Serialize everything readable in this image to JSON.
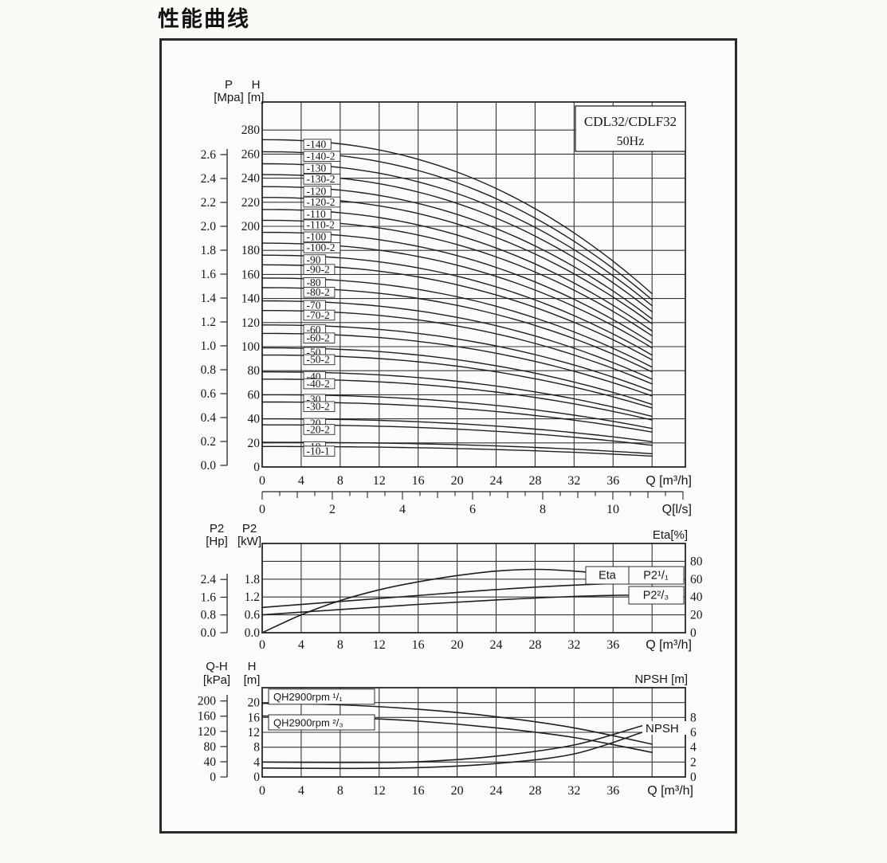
{
  "page": {
    "title": "性能曲线"
  },
  "frame": {
    "model": "CDL32/CDLF32",
    "frequency": "50Hz"
  },
  "chart_data": [
    {
      "id": "head-flow",
      "type": "line",
      "title": "CDL32/CDLF32 50Hz pump Q-H family curves",
      "x_axis": {
        "label": "Q [m³/h]",
        "ticks": [
          0,
          4,
          8,
          12,
          16,
          20,
          24,
          28,
          32,
          36
        ],
        "grid_step": 4,
        "grid_max": 40,
        "xmax": 43.4
      },
      "x_axis_ls": {
        "label": "Q[l/s]",
        "ticks": [
          0,
          2,
          4,
          6,
          8,
          10
        ],
        "minor_step": 0.5,
        "tick_max": 12
      },
      "y_axis_mpa": {
        "name": "P",
        "unit": "[Mpa]",
        "ticks": [
          "2.6",
          "2.4",
          "2.2",
          "2.0",
          "1.8",
          "1.6",
          "1.4",
          "1.2",
          "1.0",
          "0.8",
          "0.6",
          "0.4",
          "0.2",
          "0.0"
        ]
      },
      "y_axis_m": {
        "name": "H",
        "unit": "[m]",
        "ticks": [
          280,
          260,
          240,
          220,
          200,
          180,
          160,
          140,
          120,
          100,
          80,
          60,
          40,
          20,
          0
        ],
        "grid_step": 20,
        "ymax": 303
      },
      "q_max": 40,
      "series": [
        {
          "label": "-140",
          "h_shutoff": 272,
          "h_at_qmax": 144
        },
        {
          "label": "-140-2",
          "h_shutoff": 262,
          "h_at_qmax": 139
        },
        {
          "label": "-130",
          "h_shutoff": 252,
          "h_at_qmax": 134
        },
        {
          "label": "-130-2",
          "h_shutoff": 243,
          "h_at_qmax": 129
        },
        {
          "label": "-120",
          "h_shutoff": 233,
          "h_at_qmax": 123
        },
        {
          "label": "-120-2",
          "h_shutoff": 224,
          "h_at_qmax": 119
        },
        {
          "label": "-110",
          "h_shutoff": 214,
          "h_at_qmax": 113
        },
        {
          "label": "-110-2",
          "h_shutoff": 205,
          "h_at_qmax": 109
        },
        {
          "label": "-100",
          "h_shutoff": 195,
          "h_at_qmax": 103
        },
        {
          "label": "-100-2",
          "h_shutoff": 186,
          "h_at_qmax": 99
        },
        {
          "label": "-90",
          "h_shutoff": 176,
          "h_at_qmax": 93
        },
        {
          "label": "-90-2",
          "h_shutoff": 168,
          "h_at_qmax": 89
        },
        {
          "label": "-80",
          "h_shutoff": 157,
          "h_at_qmax": 83
        },
        {
          "label": "-80-2",
          "h_shutoff": 149,
          "h_at_qmax": 79
        },
        {
          "label": "-70",
          "h_shutoff": 138,
          "h_at_qmax": 73
        },
        {
          "label": "-70-2",
          "h_shutoff": 130,
          "h_at_qmax": 69
        },
        {
          "label": "-60",
          "h_shutoff": 118,
          "h_at_qmax": 63
        },
        {
          "label": "-60-2",
          "h_shutoff": 111,
          "h_at_qmax": 59
        },
        {
          "label": "-50",
          "h_shutoff": 99,
          "h_at_qmax": 52
        },
        {
          "label": "-50-2",
          "h_shutoff": 93,
          "h_at_qmax": 49
        },
        {
          "label": "-40",
          "h_shutoff": 79,
          "h_at_qmax": 42
        },
        {
          "label": "-40-2",
          "h_shutoff": 73,
          "h_at_qmax": 39
        },
        {
          "label": "-30",
          "h_shutoff": 60,
          "h_at_qmax": 32
        },
        {
          "label": "-30-2",
          "h_shutoff": 54,
          "h_at_qmax": 29
        },
        {
          "label": "-20",
          "h_shutoff": 40,
          "h_at_qmax": 21
        },
        {
          "label": "-20-2",
          "h_shutoff": 35,
          "h_at_qmax": 18
        },
        {
          "label": "-10",
          "h_shutoff": 20.5,
          "h_at_qmax": 11
        },
        {
          "label": "-10-1",
          "h_shutoff": 17,
          "h_at_qmax": 9
        }
      ]
    },
    {
      "id": "power-efficiency",
      "type": "line",
      "x_axis": {
        "label": "Q [m³/h]",
        "ticks": [
          0,
          4,
          8,
          12,
          16,
          20,
          24,
          28,
          32,
          36
        ],
        "grid_step": 4,
        "grid_max": 40,
        "xmax": 43.4
      },
      "y_axis_hp": {
        "name": "P2",
        "unit": "[Hp]",
        "ticks": [
          "2.4",
          "1.6",
          "0.8",
          "0.0"
        ]
      },
      "y_axis_kw": {
        "name": "P2",
        "unit": "[kW]",
        "ticks": [
          "1.8",
          "1.2",
          "0.6",
          "0.0"
        ],
        "grid_step": 0.6,
        "ymax": 3.0
      },
      "y_axis_eta": {
        "label": "Eta[%]",
        "ticks": [
          80,
          60,
          40,
          20,
          0
        ],
        "ymax": 100
      },
      "series": [
        {
          "label": "Eta",
          "scale": "eta",
          "points": [
            [
              0,
              0
            ],
            [
              4,
              20
            ],
            [
              8,
              36
            ],
            [
              12,
              48
            ],
            [
              16,
              57
            ],
            [
              20,
              64
            ],
            [
              24,
              69
            ],
            [
              28,
              71
            ],
            [
              32,
              69
            ],
            [
              36,
              65
            ],
            [
              40,
              59
            ]
          ]
        },
        {
          "label": "P2¹/₁",
          "scale": "kw",
          "points": [
            [
              0,
              0.85
            ],
            [
              8,
              1.05
            ],
            [
              16,
              1.25
            ],
            [
              24,
              1.45
            ],
            [
              32,
              1.6
            ],
            [
              40,
              1.7
            ]
          ]
        },
        {
          "label": "P2²/₃",
          "scale": "kw",
          "points": [
            [
              0,
              0.6
            ],
            [
              8,
              0.78
            ],
            [
              16,
              0.95
            ],
            [
              24,
              1.1
            ],
            [
              32,
              1.22
            ],
            [
              40,
              1.28
            ]
          ]
        }
      ]
    },
    {
      "id": "qh-npsh",
      "type": "line",
      "x_axis": {
        "label": "Q [m³/h]",
        "ticks": [
          0,
          4,
          8,
          12,
          16,
          20,
          24,
          28,
          32,
          36
        ],
        "grid_step": 4,
        "grid_max": 40,
        "xmax": 43.4
      },
      "y_axis_kpa": {
        "name": "Q-H",
        "unit": "[kPa]",
        "ticks": [
          200,
          160,
          120,
          80,
          40,
          0
        ]
      },
      "y_axis_m": {
        "name": "H",
        "unit": "[m]",
        "ticks": [
          20,
          16,
          12,
          8,
          4,
          0
        ],
        "grid_step": 4,
        "ymax": 24
      },
      "y_axis_npsh": {
        "label": "NPSH [m]",
        "ticks": [
          8,
          6,
          4,
          2,
          0
        ]
      },
      "series": [
        {
          "label": "QH2900rpm ¹/₁",
          "scale": "m",
          "points": [
            [
              0,
              19.8
            ],
            [
              8,
              19.4
            ],
            [
              16,
              18.2
            ],
            [
              24,
              16.2
            ],
            [
              32,
              13.2
            ],
            [
              40,
              8.8
            ]
          ]
        },
        {
          "label": "QH2900rpm ²/₃",
          "scale": "m",
          "points": [
            [
              0,
              16.4
            ],
            [
              8,
              16.0
            ],
            [
              16,
              15.0
            ],
            [
              24,
              13.2
            ],
            [
              32,
              10.6
            ],
            [
              40,
              6.6
            ]
          ]
        },
        {
          "label": "NPSH",
          "scale": "npsh",
          "points": [
            [
              0,
              2.0
            ],
            [
              8,
              1.95
            ],
            [
              16,
              2.05
            ],
            [
              24,
              2.8
            ],
            [
              32,
              4.3
            ],
            [
              39,
              6.9
            ]
          ]
        },
        {
          "label": "",
          "scale": "npsh",
          "points": [
            [
              0,
              1.2
            ],
            [
              8,
              1.15
            ],
            [
              16,
              1.25
            ],
            [
              24,
              1.8
            ],
            [
              32,
              3.1
            ],
            [
              39,
              6.0
            ]
          ]
        }
      ]
    }
  ]
}
